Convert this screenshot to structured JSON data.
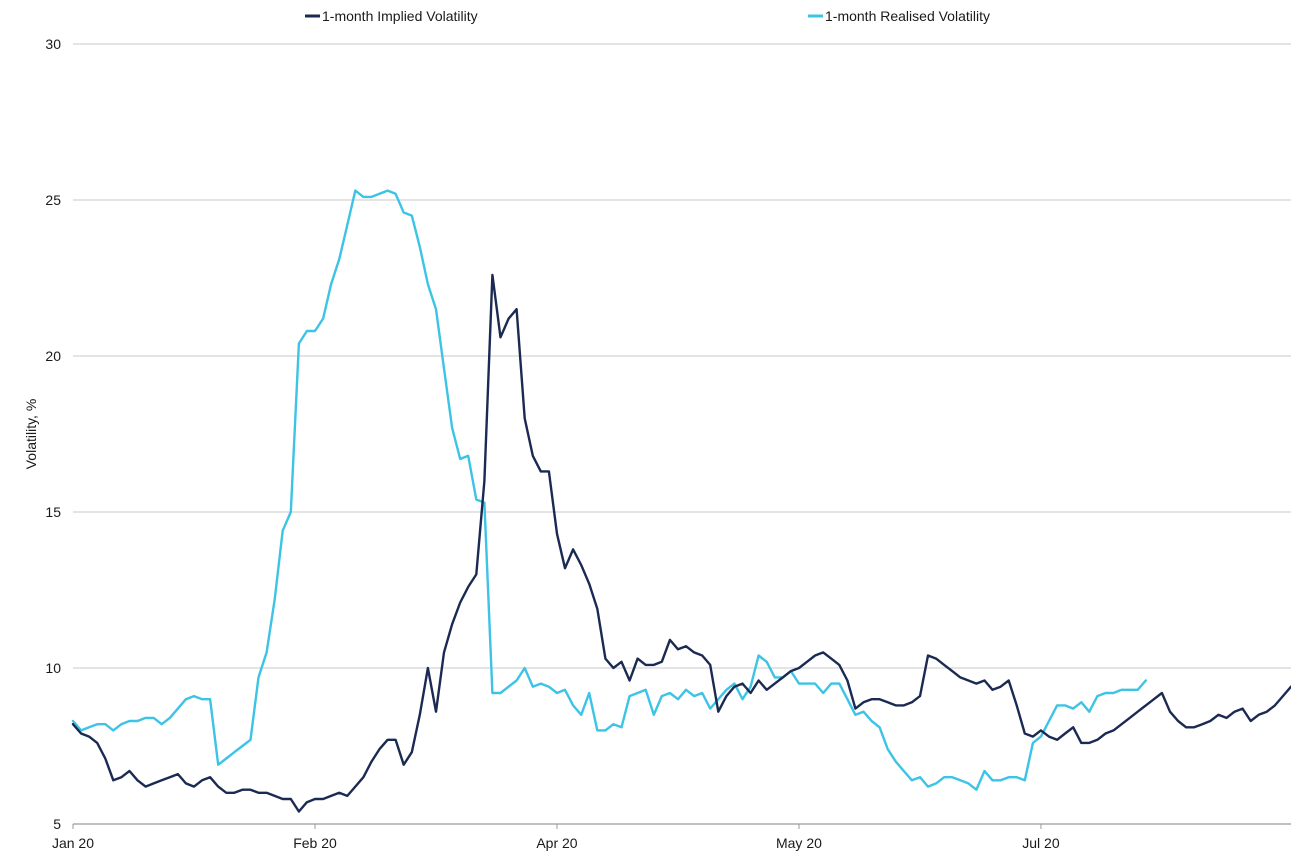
{
  "chart_data": {
    "type": "line",
    "title": "",
    "xlabel": "",
    "ylabel": "Volatility, %",
    "ylim": [
      5,
      30
    ],
    "yticks": [
      5,
      10,
      15,
      20,
      25,
      30
    ],
    "xlim": [
      0,
      150
    ],
    "xticks": [
      {
        "label": "Jan 20",
        "x": 0
      },
      {
        "label": "Feb 20",
        "x": 30
      },
      {
        "label": "Apr 20",
        "x": 60
      },
      {
        "label": "May 20",
        "x": 90
      },
      {
        "label": "Jul 20",
        "x": 120
      }
    ],
    "grid": "horizontal",
    "legend_position": "top",
    "series": [
      {
        "name": "1-month Implied Volatility",
        "color": "#1b2a52",
        "points": [
          [
            0,
            8.2
          ],
          [
            1,
            7.9
          ],
          [
            2,
            7.8
          ],
          [
            3,
            7.6
          ],
          [
            4,
            7.1
          ],
          [
            5,
            6.4
          ],
          [
            6,
            6.5
          ],
          [
            7,
            6.7
          ],
          [
            8,
            6.4
          ],
          [
            9,
            6.2
          ],
          [
            10,
            6.3
          ],
          [
            11,
            6.4
          ],
          [
            12,
            6.5
          ],
          [
            13,
            6.6
          ],
          [
            14,
            6.3
          ],
          [
            15,
            6.2
          ],
          [
            16,
            6.4
          ],
          [
            17,
            6.5
          ],
          [
            18,
            6.2
          ],
          [
            19,
            6.0
          ],
          [
            20,
            6.0
          ],
          [
            21,
            6.1
          ],
          [
            22,
            6.1
          ],
          [
            23,
            6.0
          ],
          [
            24,
            6.0
          ],
          [
            25,
            5.9
          ],
          [
            26,
            5.8
          ],
          [
            27,
            5.8
          ],
          [
            28,
            5.4
          ],
          [
            29,
            5.7
          ],
          [
            30,
            5.8
          ],
          [
            31,
            5.8
          ],
          [
            32,
            5.9
          ],
          [
            33,
            6.0
          ],
          [
            34,
            5.9
          ],
          [
            35,
            6.2
          ],
          [
            36,
            6.5
          ],
          [
            37,
            7.0
          ],
          [
            38,
            7.4
          ],
          [
            39,
            7.7
          ],
          [
            40,
            7.7
          ],
          [
            41,
            6.9
          ],
          [
            42,
            7.3
          ],
          [
            43,
            8.5
          ],
          [
            44,
            10.0
          ],
          [
            45,
            8.6
          ],
          [
            46,
            10.5
          ],
          [
            47,
            11.4
          ],
          [
            48,
            12.1
          ],
          [
            49,
            12.6
          ],
          [
            50,
            13.0
          ],
          [
            51,
            16.0
          ],
          [
            52,
            22.6
          ],
          [
            53,
            20.6
          ],
          [
            54,
            21.2
          ],
          [
            55,
            21.5
          ],
          [
            56,
            18.0
          ],
          [
            57,
            16.8
          ],
          [
            58,
            16.3
          ],
          [
            59,
            16.3
          ],
          [
            60,
            14.3
          ],
          [
            61,
            13.2
          ],
          [
            62,
            13.8
          ],
          [
            63,
            13.3
          ],
          [
            64,
            12.7
          ],
          [
            65,
            11.9
          ],
          [
            66,
            10.3
          ],
          [
            67,
            10.0
          ],
          [
            68,
            10.2
          ],
          [
            69,
            9.6
          ],
          [
            70,
            10.3
          ],
          [
            71,
            10.1
          ],
          [
            72,
            10.1
          ],
          [
            73,
            10.2
          ],
          [
            74,
            10.9
          ],
          [
            75,
            10.6
          ],
          [
            76,
            10.7
          ],
          [
            77,
            10.5
          ],
          [
            78,
            10.4
          ],
          [
            79,
            10.1
          ],
          [
            80,
            8.6
          ],
          [
            81,
            9.1
          ],
          [
            82,
            9.4
          ],
          [
            83,
            9.5
          ],
          [
            84,
            9.2
          ],
          [
            85,
            9.6
          ],
          [
            86,
            9.3
          ],
          [
            87,
            9.5
          ],
          [
            88,
            9.7
          ],
          [
            89,
            9.9
          ],
          [
            90,
            10.0
          ],
          [
            91,
            10.2
          ],
          [
            92,
            10.4
          ],
          [
            93,
            10.5
          ],
          [
            94,
            10.3
          ],
          [
            95,
            10.1
          ],
          [
            96,
            9.6
          ],
          [
            97,
            8.7
          ],
          [
            98,
            8.9
          ],
          [
            99,
            9.0
          ],
          [
            100,
            9.0
          ],
          [
            101,
            8.9
          ],
          [
            102,
            8.8
          ],
          [
            103,
            8.8
          ],
          [
            104,
            8.9
          ],
          [
            105,
            9.1
          ],
          [
            106,
            10.4
          ],
          [
            107,
            10.3
          ],
          [
            108,
            10.1
          ],
          [
            109,
            9.9
          ],
          [
            110,
            9.7
          ],
          [
            111,
            9.6
          ],
          [
            112,
            9.5
          ],
          [
            113,
            9.6
          ],
          [
            114,
            9.3
          ],
          [
            115,
            9.4
          ],
          [
            116,
            9.6
          ],
          [
            117,
            8.8
          ],
          [
            118,
            7.9
          ],
          [
            119,
            7.8
          ],
          [
            120,
            8.0
          ],
          [
            121,
            7.8
          ],
          [
            122,
            7.7
          ],
          [
            123,
            7.9
          ],
          [
            124,
            8.1
          ],
          [
            125,
            7.6
          ],
          [
            126,
            7.6
          ],
          [
            127,
            7.7
          ],
          [
            128,
            7.9
          ],
          [
            129,
            8.0
          ],
          [
            130,
            8.2
          ],
          [
            131,
            8.4
          ],
          [
            132,
            8.6
          ],
          [
            133,
            8.8
          ],
          [
            134,
            9.0
          ],
          [
            135,
            9.2
          ],
          [
            136,
            8.6
          ],
          [
            137,
            8.3
          ],
          [
            138,
            8.1
          ],
          [
            139,
            8.1
          ],
          [
            140,
            8.2
          ],
          [
            141,
            8.3
          ],
          [
            142,
            8.5
          ],
          [
            143,
            8.4
          ],
          [
            144,
            8.6
          ],
          [
            145,
            8.7
          ],
          [
            146,
            8.3
          ],
          [
            147,
            8.5
          ],
          [
            148,
            8.6
          ],
          [
            149,
            8.8
          ],
          [
            150,
            9.1
          ],
          [
            151,
            9.4
          ]
        ]
      },
      {
        "name": "1-month Realised Volatility",
        "color": "#3cc3e6",
        "points": [
          [
            0,
            8.3
          ],
          [
            1,
            8.0
          ],
          [
            2,
            8.1
          ],
          [
            3,
            8.2
          ],
          [
            4,
            8.2
          ],
          [
            5,
            8.0
          ],
          [
            6,
            8.2
          ],
          [
            7,
            8.3
          ],
          [
            8,
            8.3
          ],
          [
            9,
            8.4
          ],
          [
            10,
            8.4
          ],
          [
            11,
            8.2
          ],
          [
            12,
            8.4
          ],
          [
            13,
            8.7
          ],
          [
            14,
            9.0
          ],
          [
            15,
            9.1
          ],
          [
            16,
            9.0
          ],
          [
            17,
            9.0
          ],
          [
            18,
            6.9
          ],
          [
            19,
            7.1
          ],
          [
            20,
            7.3
          ],
          [
            21,
            7.5
          ],
          [
            22,
            7.7
          ],
          [
            23,
            9.7
          ],
          [
            24,
            10.5
          ],
          [
            25,
            12.2
          ],
          [
            26,
            14.4
          ],
          [
            27,
            15.0
          ],
          [
            28,
            20.4
          ],
          [
            29,
            20.8
          ],
          [
            30,
            20.8
          ],
          [
            31,
            21.2
          ],
          [
            32,
            22.3
          ],
          [
            33,
            23.1
          ],
          [
            34,
            24.2
          ],
          [
            35,
            25.3
          ],
          [
            36,
            25.1
          ],
          [
            37,
            25.1
          ],
          [
            38,
            25.2
          ],
          [
            39,
            25.3
          ],
          [
            40,
            25.2
          ],
          [
            41,
            24.6
          ],
          [
            42,
            24.5
          ],
          [
            43,
            23.5
          ],
          [
            44,
            22.3
          ],
          [
            45,
            21.5
          ],
          [
            46,
            19.6
          ],
          [
            47,
            17.7
          ],
          [
            48,
            16.7
          ],
          [
            49,
            16.8
          ],
          [
            50,
            15.4
          ],
          [
            51,
            15.3
          ],
          [
            52,
            9.2
          ],
          [
            53,
            9.2
          ],
          [
            54,
            9.4
          ],
          [
            55,
            9.6
          ],
          [
            56,
            10.0
          ],
          [
            57,
            9.4
          ],
          [
            58,
            9.5
          ],
          [
            59,
            9.4
          ],
          [
            60,
            9.2
          ],
          [
            61,
            9.3
          ],
          [
            62,
            8.8
          ],
          [
            63,
            8.5
          ],
          [
            64,
            9.2
          ],
          [
            65,
            8.0
          ],
          [
            66,
            8.0
          ],
          [
            67,
            8.2
          ],
          [
            68,
            8.1
          ],
          [
            69,
            9.1
          ],
          [
            70,
            9.2
          ],
          [
            71,
            9.3
          ],
          [
            72,
            8.5
          ],
          [
            73,
            9.1
          ],
          [
            74,
            9.2
          ],
          [
            75,
            9.0
          ],
          [
            76,
            9.3
          ],
          [
            77,
            9.1
          ],
          [
            78,
            9.2
          ],
          [
            79,
            8.7
          ],
          [
            80,
            9.0
          ],
          [
            81,
            9.3
          ],
          [
            82,
            9.5
          ],
          [
            83,
            9.0
          ],
          [
            84,
            9.4
          ],
          [
            85,
            10.4
          ],
          [
            86,
            10.2
          ],
          [
            87,
            9.7
          ],
          [
            88,
            9.7
          ],
          [
            89,
            9.9
          ],
          [
            90,
            9.5
          ],
          [
            91,
            9.5
          ],
          [
            92,
            9.5
          ],
          [
            93,
            9.2
          ],
          [
            94,
            9.5
          ],
          [
            95,
            9.5
          ],
          [
            96,
            9.0
          ],
          [
            97,
            8.5
          ],
          [
            98,
            8.6
          ],
          [
            99,
            8.3
          ],
          [
            100,
            8.1
          ],
          [
            101,
            7.4
          ],
          [
            102,
            7.0
          ],
          [
            103,
            6.7
          ],
          [
            104,
            6.4
          ],
          [
            105,
            6.5
          ],
          [
            106,
            6.2
          ],
          [
            107,
            6.3
          ],
          [
            108,
            6.5
          ],
          [
            109,
            6.5
          ],
          [
            110,
            6.4
          ],
          [
            111,
            6.3
          ],
          [
            112,
            6.1
          ],
          [
            113,
            6.7
          ],
          [
            114,
            6.4
          ],
          [
            115,
            6.4
          ],
          [
            116,
            6.5
          ],
          [
            117,
            6.5
          ],
          [
            118,
            6.4
          ],
          [
            119,
            7.6
          ],
          [
            120,
            7.8
          ],
          [
            121,
            8.3
          ],
          [
            122,
            8.8
          ],
          [
            123,
            8.8
          ],
          [
            124,
            8.7
          ],
          [
            125,
            8.9
          ],
          [
            126,
            8.6
          ],
          [
            127,
            9.1
          ],
          [
            128,
            9.2
          ],
          [
            129,
            9.2
          ],
          [
            130,
            9.3
          ],
          [
            131,
            9.3
          ],
          [
            132,
            9.3
          ],
          [
            133,
            9.6
          ]
        ]
      }
    ]
  }
}
